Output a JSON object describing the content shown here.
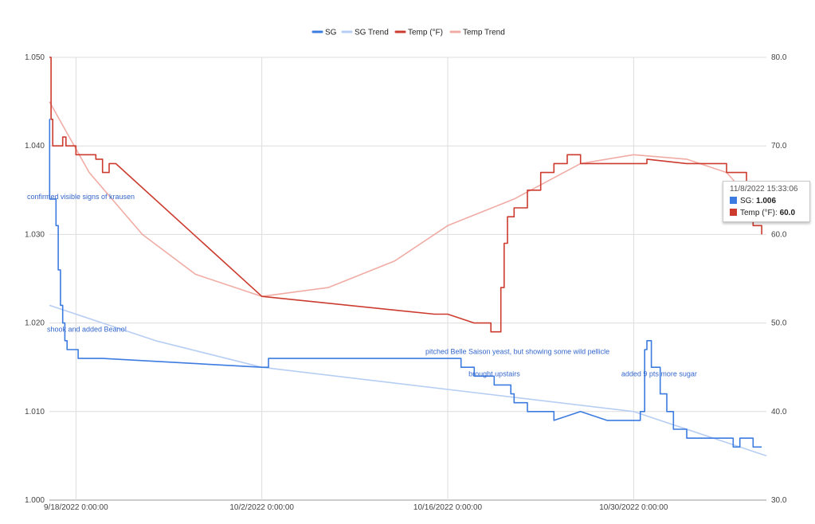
{
  "chart_data": {
    "type": "line",
    "title": "",
    "legend": {
      "placement": "top-center",
      "entries": [
        "SG",
        "SG Trend",
        "Temp (°F)",
        "Temp Trend"
      ]
    },
    "colors": {
      "sg": "#3c7be0",
      "sg_trend": "#b6cef3",
      "temp": "#cc3b2e",
      "temp_trend": "#f0aca4",
      "grid": "#dddddd"
    },
    "x_axis": {
      "type": "date",
      "ticks": [
        "9/18/2022 0:00:00",
        "10/2/2022 0:00:00",
        "10/16/2022 0:00:00",
        "10/30/2022 0:00:00"
      ],
      "range": [
        "2022-09-16T00:00",
        "2022-11-09T00:00"
      ]
    },
    "y_left": {
      "label": "",
      "ylim": [
        1.0,
        1.05
      ],
      "ticks": [
        "1.000",
        "1.010",
        "1.020",
        "1.030",
        "1.040",
        "1.050"
      ]
    },
    "y_right": {
      "label": "",
      "ylim": [
        30,
        80
      ],
      "ticks": [
        "30.0",
        "40.0",
        "50.0",
        "60.0",
        "70.0",
        "80.0"
      ]
    },
    "grid": true,
    "series": [
      {
        "name": "SG",
        "axis": "left",
        "points": [
          [
            "2022-09-16T00:00",
            1.043
          ],
          [
            "2022-09-16T00:30",
            1.034
          ],
          [
            "2022-09-16T06:00",
            1.034
          ],
          [
            "2022-09-16T12:00",
            1.031
          ],
          [
            "2022-09-16T16:00",
            1.026
          ],
          [
            "2022-09-16T20:00",
            1.022
          ],
          [
            "2022-09-17T00:00",
            1.02
          ],
          [
            "2022-09-17T04:00",
            1.018
          ],
          [
            "2022-09-17T08:00",
            1.017
          ],
          [
            "2022-09-17T20:00",
            1.017
          ],
          [
            "2022-09-18T04:00",
            1.016
          ],
          [
            "2022-09-20T00:00",
            1.016
          ],
          [
            "2022-10-02T00:00",
            1.015
          ],
          [
            "2022-10-02T12:00",
            1.016
          ],
          [
            "2022-10-16T00:00",
            1.016
          ],
          [
            "2022-10-17T00:00",
            1.015
          ],
          [
            "2022-10-18T00:00",
            1.014
          ],
          [
            "2022-10-19T00:00",
            1.014
          ],
          [
            "2022-10-19T12:00",
            1.013
          ],
          [
            "2022-10-20T12:00",
            1.013
          ],
          [
            "2022-10-20T18:00",
            1.012
          ],
          [
            "2022-10-21T00:00",
            1.011
          ],
          [
            "2022-10-22T00:00",
            1.01
          ],
          [
            "2022-10-23T00:00",
            1.01
          ],
          [
            "2022-10-24T00:00",
            1.009
          ],
          [
            "2022-10-26T00:00",
            1.01
          ],
          [
            "2022-10-28T00:00",
            1.009
          ],
          [
            "2022-10-30T00:00",
            1.009
          ],
          [
            "2022-10-30T12:00",
            1.01
          ],
          [
            "2022-10-30T20:00",
            1.017
          ],
          [
            "2022-10-31T00:00",
            1.018
          ],
          [
            "2022-10-31T08:00",
            1.015
          ],
          [
            "2022-11-01T00:00",
            1.012
          ],
          [
            "2022-11-01T12:00",
            1.01
          ],
          [
            "2022-11-02T00:00",
            1.008
          ],
          [
            "2022-11-03T00:00",
            1.007
          ],
          [
            "2022-11-05T00:00",
            1.007
          ],
          [
            "2022-11-06T12:00",
            1.006
          ],
          [
            "2022-11-07T00:00",
            1.007
          ],
          [
            "2022-11-08T00:00",
            1.006
          ],
          [
            "2022-11-08T15:33",
            1.006
          ]
        ]
      },
      {
        "name": "SG Trend",
        "axis": "left",
        "points": [
          [
            "2022-09-16T00:00",
            1.022
          ],
          [
            "2022-09-24T00:00",
            1.018
          ],
          [
            "2022-10-02T00:00",
            1.015
          ],
          [
            "2022-10-16T00:00",
            1.0125
          ],
          [
            "2022-10-30T00:00",
            1.01
          ],
          [
            "2022-11-09T00:00",
            1.005
          ]
        ]
      },
      {
        "name": "Temp (°F)",
        "axis": "right",
        "points": [
          [
            "2022-09-16T00:00",
            80.0
          ],
          [
            "2022-09-16T03:00",
            73.0
          ],
          [
            "2022-09-16T06:00",
            70.0
          ],
          [
            "2022-09-17T00:00",
            71.0
          ],
          [
            "2022-09-17T06:00",
            70.0
          ],
          [
            "2022-09-18T00:00",
            69.0
          ],
          [
            "2022-09-19T12:00",
            68.5
          ],
          [
            "2022-09-20T00:00",
            67.0
          ],
          [
            "2022-09-20T12:00",
            68.0
          ],
          [
            "2022-09-21T00:00",
            68.0
          ],
          [
            "2022-10-02T00:00",
            53.0
          ],
          [
            "2022-10-15T00:00",
            51.0
          ],
          [
            "2022-10-16T00:00",
            51.0
          ],
          [
            "2022-10-18T00:00",
            50.0
          ],
          [
            "2022-10-19T00:00",
            50.0
          ],
          [
            "2022-10-19T06:00",
            49.0
          ],
          [
            "2022-10-19T18:00",
            49.0
          ],
          [
            "2022-10-20T00:00",
            54.0
          ],
          [
            "2022-10-20T06:00",
            59.0
          ],
          [
            "2022-10-20T12:00",
            62.0
          ],
          [
            "2022-10-21T00:00",
            63.0
          ],
          [
            "2022-10-22T00:00",
            65.0
          ],
          [
            "2022-10-23T00:00",
            67.0
          ],
          [
            "2022-10-24T00:00",
            68.0
          ],
          [
            "2022-10-25T00:00",
            69.0
          ],
          [
            "2022-10-26T00:00",
            68.0
          ],
          [
            "2022-10-28T00:00",
            68.0
          ],
          [
            "2022-10-30T00:00",
            68.0
          ],
          [
            "2022-10-31T00:00",
            68.5
          ],
          [
            "2022-11-03T00:00",
            68.0
          ],
          [
            "2022-11-05T00:00",
            68.0
          ],
          [
            "2022-11-06T00:00",
            67.0
          ],
          [
            "2022-11-07T00:00",
            67.0
          ],
          [
            "2022-11-07T12:00",
            65.0
          ],
          [
            "2022-11-08T00:00",
            61.0
          ],
          [
            "2022-11-08T15:33",
            60.0
          ]
        ]
      },
      {
        "name": "Temp Trend",
        "axis": "right",
        "points": [
          [
            "2022-09-16T00:00",
            75.0
          ],
          [
            "2022-09-19T00:00",
            67.0
          ],
          [
            "2022-09-23T00:00",
            60.0
          ],
          [
            "2022-09-27T00:00",
            55.5
          ],
          [
            "2022-10-02T00:00",
            53.0
          ],
          [
            "2022-10-07T00:00",
            54.0
          ],
          [
            "2022-10-12T00:00",
            57.0
          ],
          [
            "2022-10-16T00:00",
            61.0
          ],
          [
            "2022-10-21T00:00",
            64.0
          ],
          [
            "2022-10-26T00:00",
            68.0
          ],
          [
            "2022-10-30T00:00",
            69.0
          ],
          [
            "2022-11-03T00:00",
            68.5
          ],
          [
            "2022-11-06T00:00",
            67.0
          ],
          [
            "2022-11-09T00:00",
            62.0
          ]
        ]
      }
    ],
    "annotations": [
      {
        "text": "confirmed visible signs of krausen",
        "x": "2022-09-16T00:00",
        "y": 1.034
      },
      {
        "text": "shook and added Beano!",
        "x": "2022-09-17T12:00",
        "y": 1.019
      },
      {
        "text": "pitched Belle Saison yeast, but showing some wild pellicle",
        "x": "2022-10-16T00:00",
        "y": 1.0165
      },
      {
        "text": "brought upstairs",
        "x": "2022-10-19T06:00",
        "y": 1.014
      },
      {
        "text": "added 9 pts more sugar",
        "x": "2022-10-30T18:00",
        "y": 1.014
      }
    ],
    "tooltip": {
      "title": "11/8/2022 15:33:06",
      "rows": [
        {
          "label": "SG: ",
          "value": "1.006",
          "color": "#3c7be0"
        },
        {
          "label": "Temp (°F): ",
          "value": "60.0",
          "color": "#cc3b2e"
        }
      ]
    }
  }
}
